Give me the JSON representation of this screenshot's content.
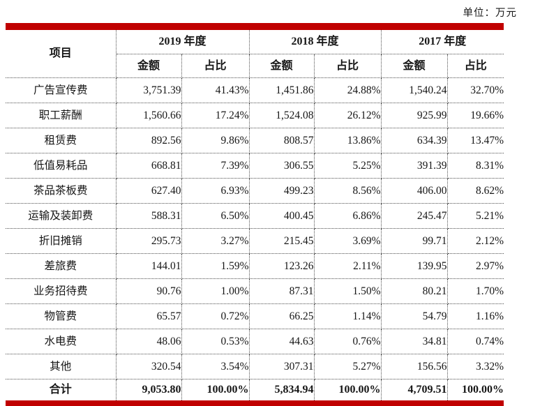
{
  "unit_label": "单位：万元",
  "accent_color": "#c00000",
  "table": {
    "item_header": "项目",
    "year_headers": [
      "2019 年度",
      "2018 年度",
      "2017 年度"
    ],
    "sub_headers": [
      "金额",
      "占比"
    ],
    "rows": [
      {
        "item": "广告宣传费",
        "values": [
          "3,751.39",
          "41.43%",
          "1,451.86",
          "24.88%",
          "1,540.24",
          "32.70%"
        ]
      },
      {
        "item": "职工薪酬",
        "values": [
          "1,560.66",
          "17.24%",
          "1,524.08",
          "26.12%",
          "925.99",
          "19.66%"
        ]
      },
      {
        "item": "租赁费",
        "values": [
          "892.56",
          "9.86%",
          "808.57",
          "13.86%",
          "634.39",
          "13.47%"
        ]
      },
      {
        "item": "低值易耗品",
        "values": [
          "668.81",
          "7.39%",
          "306.55",
          "5.25%",
          "391.39",
          "8.31%"
        ]
      },
      {
        "item": "茶品茶板费",
        "values": [
          "627.40",
          "6.93%",
          "499.23",
          "8.56%",
          "406.00",
          "8.62%"
        ]
      },
      {
        "item": "运输及装卸费",
        "values": [
          "588.31",
          "6.50%",
          "400.45",
          "6.86%",
          "245.47",
          "5.21%"
        ]
      },
      {
        "item": "折旧摊销",
        "values": [
          "295.73",
          "3.27%",
          "215.45",
          "3.69%",
          "99.71",
          "2.12%"
        ]
      },
      {
        "item": "差旅费",
        "values": [
          "144.01",
          "1.59%",
          "123.26",
          "2.11%",
          "139.95",
          "2.97%"
        ]
      },
      {
        "item": "业务招待费",
        "values": [
          "90.76",
          "1.00%",
          "87.31",
          "1.50%",
          "80.21",
          "1.70%"
        ]
      },
      {
        "item": "物管费",
        "values": [
          "65.57",
          "0.72%",
          "66.25",
          "1.14%",
          "54.79",
          "1.16%"
        ]
      },
      {
        "item": "水电费",
        "values": [
          "48.06",
          "0.53%",
          "44.63",
          "0.76%",
          "34.81",
          "0.74%"
        ]
      },
      {
        "item": "其他",
        "values": [
          "320.54",
          "3.54%",
          "307.31",
          "5.27%",
          "156.56",
          "3.32%"
        ]
      }
    ],
    "total_row": {
      "item": "合计",
      "values": [
        "9,053.80",
        "100.00%",
        "5,834.94",
        "100.00%",
        "4,709.51",
        "100.00%"
      ]
    }
  }
}
